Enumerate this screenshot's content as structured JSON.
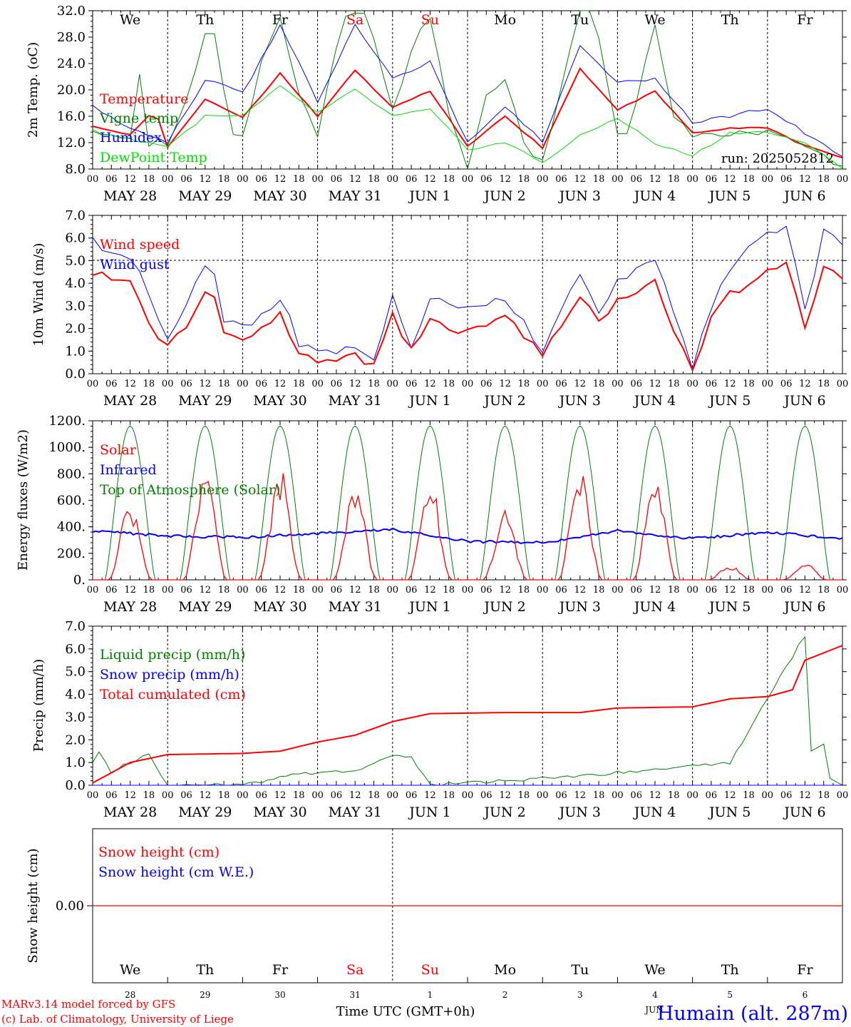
{
  "header": {
    "run_label": "run: 2025052812",
    "weekdays": [
      {
        "label": "We",
        "color": "#000000"
      },
      {
        "label": "Th",
        "color": "#000000"
      },
      {
        "label": "Fr",
        "color": "#000000"
      },
      {
        "label": "Sa",
        "color": "#ff0000"
      },
      {
        "label": "Su",
        "color": "#ff0000"
      },
      {
        "label": "Mo",
        "color": "#000000"
      },
      {
        "label": "Tu",
        "color": "#000000"
      },
      {
        "label": "We",
        "color": "#000000"
      },
      {
        "label": "Th",
        "color": "#000000"
      },
      {
        "label": "Fr",
        "color": "#000000"
      }
    ],
    "dates": [
      "MAY 28",
      "MAY 29",
      "MAY 30",
      "MAY 31",
      "JUN  1",
      "JUN  2",
      "JUN  3",
      "JUN  4",
      "JUN  5",
      "JUN  6"
    ],
    "day_numbers": [
      "28",
      "29",
      "30",
      "31",
      "1",
      "2",
      "3",
      "4",
      "5",
      "6"
    ],
    "hour_ticks": [
      "00",
      "06",
      "12",
      "18"
    ],
    "final_tick": "00"
  },
  "footer": {
    "model_line": "MARv3.14 model forced by GFS",
    "copyright_line": "(c) Lab. of Climatology, University of Liege",
    "time_axis_label": "Time UTC (GMT+0h)",
    "station": "Humain (alt. 287m)",
    "overlap_label": "JUN"
  },
  "colors": {
    "temperature": "#ff0000",
    "vigne": "#008000",
    "humidex": "#0000ff",
    "dewpoint": "#00e000"
  },
  "chart_data": [
    {
      "type": "line",
      "ylabel": "2m Temp. (oC)",
      "ylim": [
        8.0,
        32.0
      ],
      "yticks": [
        "8.0",
        "12.0",
        "16.0",
        "20.0",
        "24.0",
        "28.0",
        "32.0"
      ],
      "x_unit": "hours since 2025-05-28 00 UTC",
      "series": [
        {
          "name": "Temperature",
          "color": "#ff0000",
          "x": [
            0,
            12,
            20,
            24,
            36,
            48,
            60,
            72,
            84,
            96,
            108,
            120,
            132,
            144,
            156,
            168,
            180,
            192,
            204,
            216,
            228,
            240
          ],
          "values": [
            14.5,
            13.2,
            17.0,
            11.3,
            18.5,
            15.8,
            22.5,
            16.0,
            23.0,
            17.3,
            19.8,
            11.5,
            16.0,
            11.2,
            23.2,
            17.0,
            19.8,
            13.5,
            14.2,
            14.2,
            11.5,
            9.8
          ]
        },
        {
          "name": "Vigne temp",
          "color": "#008000",
          "x": [
            0,
            12,
            14,
            18,
            24,
            30,
            38,
            44,
            48,
            54,
            60,
            66,
            72,
            80,
            88,
            96,
            104,
            108,
            114,
            120,
            126,
            132,
            138,
            144,
            150,
            156,
            160,
            168,
            172,
            180,
            186,
            192,
            204,
            216,
            228,
            240
          ],
          "values": [
            14.0,
            13.0,
            26.3,
            12.0,
            12.0,
            18.0,
            32.0,
            14.0,
            13.0,
            24.0,
            31.0,
            19.0,
            13.0,
            31.0,
            32.0,
            16.5,
            29.0,
            31.0,
            17.0,
            8.0,
            19.0,
            22.0,
            12.0,
            9.0,
            20.0,
            32.0,
            33.0,
            13.0,
            14.0,
            30.0,
            16.0,
            13.0,
            13.5,
            13.5,
            12.0,
            8.0
          ]
        },
        {
          "name": "Humidex",
          "color": "#0000ff",
          "x": [
            0,
            12,
            24,
            36,
            48,
            60,
            72,
            84,
            96,
            108,
            120,
            132,
            144,
            156,
            168,
            180,
            192,
            204,
            216,
            228,
            240
          ],
          "values": [
            17.8,
            14.0,
            12.0,
            21.5,
            19.5,
            30.0,
            18.0,
            30.0,
            21.5,
            24.5,
            12.0,
            17.5,
            12.0,
            26.5,
            21.0,
            21.8,
            15.0,
            16.0,
            17.2,
            13.5,
            10.0
          ]
        },
        {
          "name": "DewPoint Temp",
          "color": "#00e000",
          "x": [
            0,
            12,
            24,
            36,
            48,
            60,
            72,
            84,
            96,
            108,
            120,
            132,
            144,
            156,
            168,
            180,
            192,
            204,
            216,
            228,
            240
          ],
          "values": [
            13.8,
            12.5,
            11.5,
            16.0,
            16.0,
            20.5,
            16.5,
            20.0,
            16.0,
            17.0,
            11.0,
            12.0,
            9.0,
            13.0,
            15.8,
            11.8,
            10.0,
            13.5,
            13.5,
            12.0,
            8.0
          ]
        }
      ]
    },
    {
      "type": "line",
      "ylabel": "10m Wind (m/s)",
      "ylim": [
        0.0,
        7.0
      ],
      "yticks": [
        "0.0",
        "1.0",
        "2.0",
        "3.0",
        "4.0",
        "5.0",
        "6.0",
        "7.0"
      ],
      "x_unit": "hours since 2025-05-28 00 UTC",
      "series": [
        {
          "name": "Wind speed",
          "color": "#ff0000",
          "x": [
            0,
            6,
            12,
            20,
            24,
            30,
            38,
            42,
            48,
            60,
            66,
            72,
            84,
            90,
            96,
            102,
            108,
            120,
            132,
            144,
            156,
            162,
            168,
            180,
            186,
            192,
            198,
            204,
            216,
            222,
            228,
            234,
            240
          ],
          "values": [
            4.5,
            4.2,
            4.0,
            1.8,
            1.3,
            2.2,
            4.0,
            1.8,
            1.5,
            2.6,
            1.0,
            0.6,
            0.8,
            0.3,
            2.6,
            1.0,
            2.4,
            1.8,
            2.7,
            0.8,
            3.4,
            2.3,
            3.2,
            4.0,
            2.0,
            0.2,
            2.5,
            3.5,
            4.5,
            5.0,
            2.0,
            4.9,
            4.2
          ]
        },
        {
          "name": "Wind gust",
          "color": "#0000ff",
          "x": [
            0,
            6,
            12,
            20,
            24,
            30,
            38,
            42,
            48,
            60,
            66,
            72,
            84,
            90,
            96,
            102,
            108,
            120,
            132,
            144,
            156,
            162,
            168,
            180,
            186,
            192,
            198,
            204,
            216,
            222,
            228,
            234,
            240
          ],
          "values": [
            5.8,
            5.5,
            5.3,
            2.7,
            1.7,
            3.0,
            5.3,
            2.5,
            2.0,
            3.4,
            1.3,
            0.9,
            1.0,
            0.4,
            3.5,
            1.3,
            3.2,
            3.0,
            3.4,
            1.0,
            4.6,
            2.8,
            4.0,
            5.2,
            2.5,
            0.3,
            3.0,
            4.5,
            6.4,
            6.5,
            2.7,
            6.4,
            5.6
          ]
        }
      ]
    },
    {
      "type": "line",
      "ylabel": "Energy fluxes (W/m2)",
      "ylim": [
        0,
        1200
      ],
      "yticks": [
        "0.",
        "200.",
        "400.",
        "600.",
        "800.",
        "1000.",
        "1200."
      ],
      "x_unit": "hours since 2025-05-28 00 UTC",
      "series": [
        {
          "name": "Solar",
          "color": "#ff0000",
          "peaks_x": [
            12,
            36,
            60,
            84,
            108,
            132,
            156,
            180,
            204,
            228
          ],
          "peaks_values": [
            600,
            860,
            850,
            730,
            760,
            570,
            880,
            860,
            110,
            130
          ]
        },
        {
          "name": "Infrared",
          "color": "#0000ff",
          "x": [
            0,
            24,
            48,
            72,
            96,
            120,
            144,
            168,
            192,
            216,
            240
          ],
          "values": [
            370,
            330,
            320,
            350,
            380,
            290,
            280,
            370,
            310,
            360,
            310
          ]
        },
        {
          "name": "Top of Atmosphere (Solar)",
          "color": "#008000",
          "peaks_x": [
            12,
            36,
            60,
            84,
            108,
            132,
            156,
            180,
            204,
            228
          ],
          "peaks_values": [
            1160,
            1160,
            1160,
            1160,
            1160,
            1160,
            1160,
            1160,
            1160,
            1160
          ]
        }
      ]
    },
    {
      "type": "line",
      "ylabel": "Precip (mm/h)",
      "ylim": [
        0.0,
        7.0
      ],
      "yticks": [
        "0.0",
        "1.0",
        "2.0",
        "3.0",
        "4.0",
        "5.0",
        "6.0",
        "7.0"
      ],
      "x_unit": "hours since 2025-05-28 00 UTC",
      "series": [
        {
          "name": "Liquid precip (mm/h)",
          "color": "#008000",
          "x": [
            0,
            2,
            6,
            12,
            18,
            24,
            48,
            66,
            84,
            96,
            102,
            108,
            156,
            204,
            228,
            230,
            234,
            236,
            240
          ],
          "values": [
            1.0,
            1.4,
            0.6,
            1.0,
            1.4,
            0.0,
            0.0,
            0.5,
            0.6,
            1.3,
            1.3,
            0.0,
            0.4,
            1.0,
            6.6,
            1.5,
            1.8,
            0.3,
            0.0
          ]
        },
        {
          "name": "Snow precip (mm/h)",
          "color": "#0000ff",
          "x": [
            0,
            240
          ],
          "values": [
            0.0,
            0.0
          ]
        },
        {
          "name": "Total cumulated (cm)",
          "color": "#ff0000",
          "x": [
            0,
            12,
            24,
            48,
            60,
            72,
            84,
            96,
            108,
            132,
            156,
            168,
            192,
            204,
            216,
            224,
            228,
            240
          ],
          "values": [
            0.1,
            1.0,
            1.35,
            1.4,
            1.5,
            1.9,
            2.2,
            2.8,
            3.15,
            3.2,
            3.2,
            3.4,
            3.45,
            3.8,
            3.9,
            4.2,
            5.5,
            6.15
          ]
        }
      ]
    },
    {
      "type": "line",
      "ylabel": "Snow height (cm)",
      "yticks": [
        "0.00"
      ],
      "x_unit": "hours since 2025-05-28 00 UTC",
      "series": [
        {
          "name": "Snow height (cm)",
          "color": "#ff0000",
          "x": [
            0,
            240
          ],
          "values": [
            0.0,
            0.0
          ]
        },
        {
          "name": "Snow height (cm W.E.)",
          "color": "#0000ff",
          "x": [
            0,
            240
          ],
          "values": [
            0.0,
            0.0
          ]
        }
      ]
    }
  ]
}
